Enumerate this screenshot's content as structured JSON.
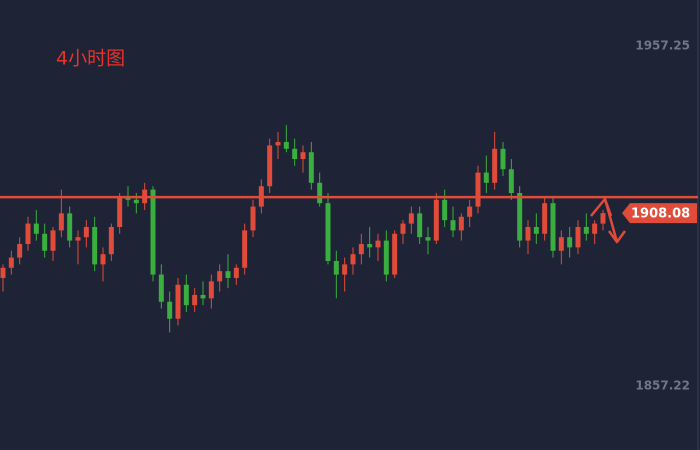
{
  "chart_data": {
    "type": "candlestick",
    "title": "4小时图",
    "open": [
      1889,
      1892,
      1895,
      1899,
      1905,
      1902,
      1897,
      1903,
      1908,
      1900,
      1901,
      1904,
      1893,
      1896,
      1904,
      1913,
      1912,
      1911,
      1915,
      1890,
      1882,
      1877,
      1887,
      1881,
      1884,
      1883,
      1888,
      1891,
      1889,
      1892,
      1903,
      1910,
      1916,
      1928,
      1929,
      1927,
      1924,
      1926,
      1917,
      1911,
      1894,
      1890,
      1893,
      1896,
      1899,
      1898,
      1900,
      1890,
      1902,
      1905,
      1908,
      1901,
      1900,
      1912,
      1906,
      1903,
      1907,
      1910,
      1920,
      1917,
      1927,
      1921,
      1914,
      1900,
      1904,
      1902,
      1911,
      1897,
      1901,
      1898,
      1904,
      1902,
      1905
    ],
    "high": [
      1893,
      1897,
      1901,
      1907,
      1909,
      1905,
      1904,
      1915,
      1910,
      1903,
      1906,
      1907,
      1898,
      1905,
      1914,
      1916,
      1914,
      1917,
      1916,
      1893,
      1885,
      1889,
      1890,
      1886,
      1888,
      1890,
      1893,
      1896,
      1893,
      1905,
      1912,
      1918,
      1930,
      1932,
      1934,
      1930,
      1928,
      1929,
      1920,
      1914,
      1897,
      1895,
      1898,
      1902,
      1904,
      1902,
      1903,
      1903,
      1906,
      1910,
      1910,
      1904,
      1914,
      1915,
      1910,
      1908,
      1912,
      1922,
      1925,
      1932,
      1929,
      1924,
      1916,
      1906,
      1908,
      1913,
      1913,
      1903,
      1904,
      1906,
      1908,
      1906,
      1909
    ],
    "low": [
      1885,
      1890,
      1893,
      1897,
      1900,
      1895,
      1894,
      1901,
      1898,
      1893,
      1898,
      1891,
      1888,
      1894,
      1902,
      1910,
      1908,
      1909,
      1888,
      1880,
      1873,
      1875,
      1879,
      1879,
      1881,
      1880,
      1885,
      1886,
      1887,
      1890,
      1901,
      1908,
      1914,
      1924,
      1926,
      1922,
      1920,
      1915,
      1910,
      1893,
      1883,
      1885,
      1890,
      1893,
      1895,
      1894,
      1888,
      1889,
      1899,
      1902,
      1899,
      1896,
      1899,
      1904,
      1901,
      1900,
      1904,
      1908,
      1914,
      1915,
      1919,
      1912,
      1898,
      1896,
      1899,
      1900,
      1895,
      1893,
      1895,
      1896,
      1900,
      1899,
      1903
    ],
    "close": [
      1892,
      1895,
      1899,
      1905,
      1902,
      1897,
      1903,
      1908,
      1900,
      1901,
      1904,
      1893,
      1896,
      1904,
      1913,
      1912,
      1911,
      1915,
      1890,
      1882,
      1877,
      1887,
      1881,
      1884,
      1883,
      1888,
      1891,
      1889,
      1892,
      1903,
      1910,
      1916,
      1928,
      1929,
      1927,
      1924,
      1926,
      1917,
      1911,
      1894,
      1890,
      1893,
      1896,
      1899,
      1898,
      1900,
      1890,
      1902,
      1905,
      1908,
      1901,
      1900,
      1912,
      1906,
      1903,
      1907,
      1910,
      1920,
      1917,
      1927,
      1921,
      1914,
      1900,
      1904,
      1902,
      1911,
      1897,
      1901,
      1898,
      1904,
      1902,
      1905,
      1908.08
    ],
    "up_color": "#e04b3a",
    "down_color": "#3aae3e",
    "reference_line": 1912.8,
    "reference_color": "#e04b3a",
    "ylim": [
      1838.39,
      1970.78
    ],
    "yticks": [
      1857.22,
      1957.25
    ]
  }
}
